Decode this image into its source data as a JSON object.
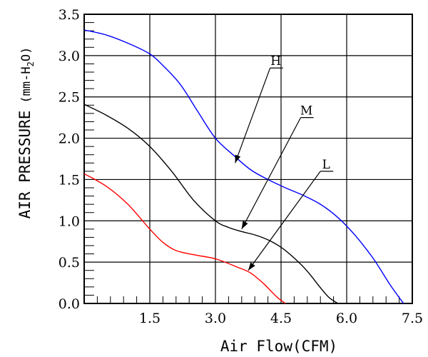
{
  "chart_data": {
    "type": "line",
    "xlabel": "Air Flow(CFM)",
    "ylabel_main": "AIR PRESSURE",
    "ylabel_unit": "(mm-H",
    "ylabel_sub": "2",
    "ylabel_end": "O)",
    "xlim": [
      0,
      7.5
    ],
    "ylim": [
      0,
      3.5
    ],
    "x_ticks": [
      "1.5",
      "3.0",
      "4.5",
      "6.0",
      "7.5"
    ],
    "x_tick_values": [
      1.5,
      3.0,
      4.5,
      6.0,
      7.5
    ],
    "y_ticks": [
      "0.0",
      "0.5",
      "1.0",
      "1.5",
      "2.0",
      "2.5",
      "3.0",
      "3.5"
    ],
    "y_tick_values": [
      0,
      0.5,
      1.0,
      1.5,
      2.0,
      2.5,
      3.0,
      3.5
    ],
    "grid": true,
    "series": [
      {
        "name": "H",
        "color": "#0000ff",
        "x": [
          0,
          0.5,
          1.0,
          1.5,
          1.8,
          2.2,
          2.6,
          3.0,
          3.4,
          3.8,
          4.2,
          4.6,
          5.0,
          5.4,
          5.8,
          6.2,
          6.6,
          7.0,
          7.3
        ],
        "y": [
          3.31,
          3.25,
          3.15,
          3.02,
          2.88,
          2.65,
          2.32,
          2.0,
          1.8,
          1.62,
          1.5,
          1.4,
          1.31,
          1.2,
          1.04,
          0.82,
          0.55,
          0.22,
          0.0
        ],
        "label_anchor": [
          3.45,
          1.7
        ]
      },
      {
        "name": "M",
        "color": "#000000",
        "x": [
          0,
          0.5,
          1.0,
          1.5,
          2.0,
          2.5,
          3.0,
          3.3,
          3.6,
          3.9,
          4.2,
          4.5,
          4.8,
          5.1,
          5.4,
          5.6,
          5.8
        ],
        "y": [
          2.41,
          2.28,
          2.12,
          1.9,
          1.6,
          1.25,
          1.0,
          0.92,
          0.87,
          0.83,
          0.77,
          0.68,
          0.55,
          0.39,
          0.19,
          0.07,
          0.0
        ],
        "label_anchor": [
          3.6,
          0.9
        ]
      },
      {
        "name": "L",
        "color": "#ff0000",
        "x": [
          0,
          0.5,
          1.0,
          1.5,
          1.8,
          2.1,
          2.5,
          3.0,
          3.5,
          3.8,
          4.1,
          4.4,
          4.6
        ],
        "y": [
          1.57,
          1.42,
          1.2,
          0.9,
          0.74,
          0.64,
          0.59,
          0.54,
          0.44,
          0.37,
          0.24,
          0.08,
          0.0
        ],
        "label_anchor": [
          3.75,
          0.4
        ]
      }
    ],
    "series_label_positions": {
      "H": [
        4.25,
        2.85
      ],
      "M": [
        4.95,
        2.25
      ],
      "L": [
        5.4,
        1.6
      ]
    }
  }
}
